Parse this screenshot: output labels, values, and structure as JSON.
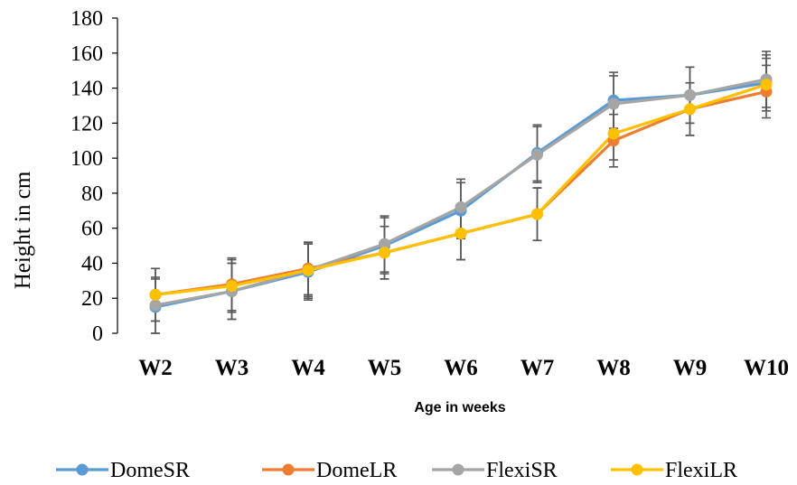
{
  "chart_data": {
    "type": "line",
    "xlabel": "Age in weeks",
    "ylabel": "Height in cm",
    "categories": [
      "W2",
      "W3",
      "W4",
      "W5",
      "W6",
      "W7",
      "W8",
      "W9",
      "W10"
    ],
    "ylim": [
      0,
      180
    ],
    "yticks": [
      0,
      20,
      40,
      60,
      80,
      100,
      120,
      140,
      160,
      180
    ],
    "grid": false,
    "legend": "bottom",
    "series": [
      {
        "name": "DomeSR",
        "color": "#5b9bd5",
        "values": [
          15,
          24,
          35,
          50,
          70,
          103,
          133,
          136,
          143
        ],
        "error": [
          16,
          16,
          16,
          16,
          16,
          16,
          16,
          16,
          16
        ]
      },
      {
        "name": "DomeLR",
        "color": "#ed7d31",
        "values": [
          22,
          28,
          37,
          46,
          57,
          68,
          110,
          128,
          138
        ],
        "error": [
          15,
          15,
          15,
          15,
          15,
          15,
          15,
          15,
          15
        ]
      },
      {
        "name": "FlexiSR",
        "color": "#a5a5a5",
        "values": [
          16,
          24,
          36,
          51,
          72,
          102,
          131,
          136,
          145
        ],
        "error": [
          16,
          16,
          16,
          16,
          16,
          16,
          16,
          16,
          16
        ]
      },
      {
        "name": "FlexiLR",
        "color": "#ffc000",
        "values": [
          22,
          27,
          36,
          46,
          57,
          68,
          114,
          128,
          142
        ],
        "error": [
          15,
          15,
          15,
          15,
          15,
          15,
          15,
          15,
          15
        ]
      }
    ]
  }
}
